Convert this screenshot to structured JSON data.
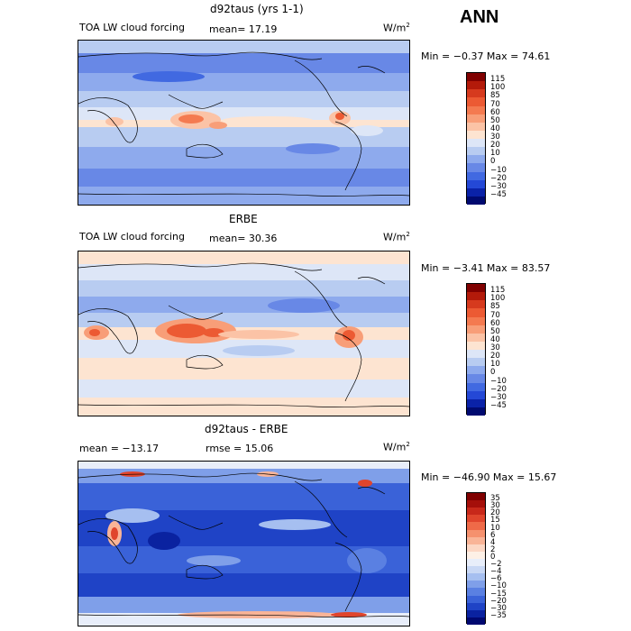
{
  "header": {
    "ann_label": "ANN"
  },
  "panels": [
    {
      "title": "d92taus (yrs 1-1)",
      "left_label": "TOA LW cloud forcing",
      "stat_label": "mean=  17.19",
      "units_base": "W/m",
      "units_exp": "2",
      "minmax": "Min =  −0.37 Max =  74.61",
      "colorbar": {
        "labels": [
          "115",
          "100",
          "85",
          "70",
          "60",
          "50",
          "40",
          "30",
          "20",
          "10",
          "0",
          "−10",
          "−20",
          "−30",
          "−45"
        ],
        "colors": [
          "#800000",
          "#b31a0a",
          "#d63a1e",
          "#ec5a33",
          "#f47a50",
          "#f89e78",
          "#fbc3a6",
          "#fde4d1",
          "#dde6f7",
          "#b8ccf1",
          "#8eaaed",
          "#6888e6",
          "#4169e1",
          "#2448d6",
          "#0a22a8",
          "#000a70"
        ]
      }
    },
    {
      "title": "ERBE",
      "left_label": "TOA LW cloud forcing",
      "stat_label": "mean=  30.36",
      "units_base": "W/m",
      "units_exp": "2",
      "minmax": "Min =  −3.41 Max =  83.57",
      "colorbar": {
        "labels": [
          "115",
          "100",
          "85",
          "70",
          "60",
          "50",
          "40",
          "30",
          "20",
          "10",
          "0",
          "−10",
          "−20",
          "−30",
          "−45"
        ],
        "colors": [
          "#800000",
          "#b31a0a",
          "#d63a1e",
          "#ec5a33",
          "#f47a50",
          "#f89e78",
          "#fbc3a6",
          "#fde4d1",
          "#dde6f7",
          "#b8ccf1",
          "#8eaaed",
          "#6888e6",
          "#4169e1",
          "#2448d6",
          "#0a22a8",
          "#000a70"
        ]
      }
    },
    {
      "title": "d92taus - ERBE",
      "left_label": "mean =  −13.17",
      "stat_label": "rmse =  15.06",
      "units_base": "W/m",
      "units_exp": "2",
      "minmax": "Min =  −46.90 Max =  15.67",
      "colorbar": {
        "labels": [
          "35",
          "30",
          "20",
          "15",
          "10",
          "6",
          "4",
          "2",
          "0",
          "−2",
          "−4",
          "−6",
          "−10",
          "−15",
          "−20",
          "−30",
          "−35"
        ],
        "colors": [
          "#800000",
          "#a50f0a",
          "#c8281a",
          "#e0452c",
          "#ef6a48",
          "#f5916e",
          "#f9b497",
          "#fcd7c4",
          "#fdf0e6",
          "#e8eefa",
          "#c9d8f5",
          "#a6bff0",
          "#7f9fe9",
          "#5a80e2",
          "#3a62d8",
          "#1f43c6",
          "#0a22a0",
          "#000870"
        ]
      }
    }
  ]
}
